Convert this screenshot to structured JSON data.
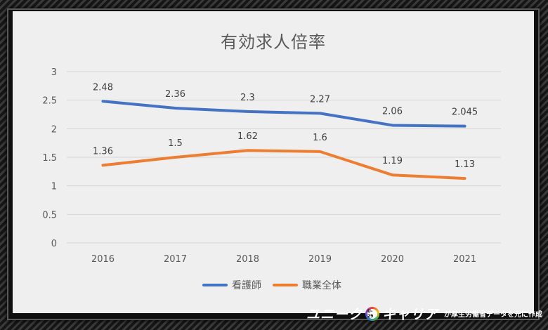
{
  "chart_data": {
    "type": "line",
    "title": "有効求人倍率",
    "categories": [
      "2016",
      "2017",
      "2018",
      "2019",
      "2020",
      "2021"
    ],
    "y_ticks": [
      "0",
      "0.5",
      "1",
      "1.5",
      "2",
      "2.5",
      "3"
    ],
    "ylim": [
      0,
      3
    ],
    "grid": true,
    "legend_position": "bottom",
    "series": [
      {
        "name": "看護師",
        "color": "#4472c4",
        "values": [
          2.48,
          2.36,
          2.3,
          2.27,
          2.06,
          2.045
        ],
        "labels": [
          "2.48",
          "2.36",
          "2.3",
          "2.27",
          "2.06",
          "2.045"
        ]
      },
      {
        "name": "職業全体",
        "color": "#ed7d31",
        "values": [
          1.36,
          1.5,
          1.62,
          1.6,
          1.19,
          1.13
        ],
        "labels": [
          "1.36",
          "1.5",
          "1.62",
          "1.6",
          "1.19",
          "1.13"
        ]
      }
    ]
  },
  "brand": {
    "name_part1": "ユニーク",
    "logo_text": "U-29",
    "name_part2": "キャリア",
    "tagline": "が厚生労働省データを元に作成"
  }
}
